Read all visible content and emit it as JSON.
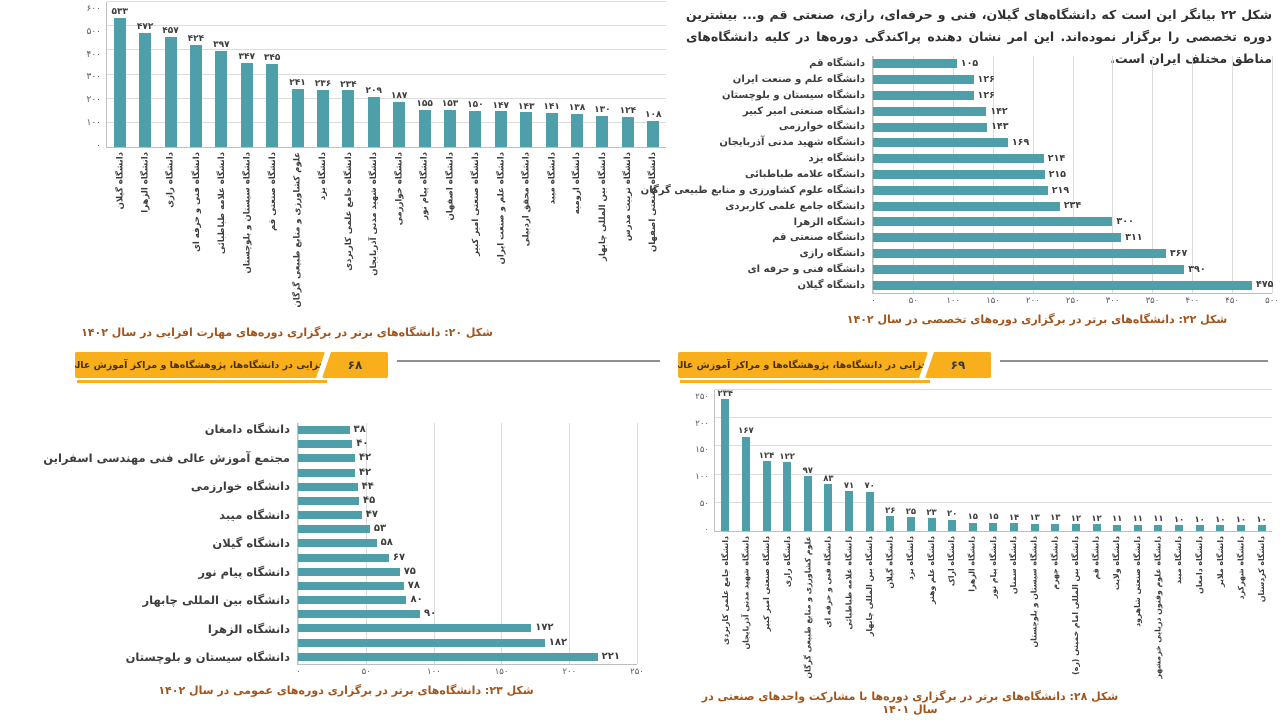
{
  "numeral_system": "persian-digits",
  "colors": {
    "bar": "#4F9FAB",
    "caption_text": "#A3541A",
    "banner_orange": "#F9AE1B",
    "grid_line": "#DCDCDC",
    "axis_line": "#BFBFBF",
    "axis_tick_text": "#595959",
    "value_label_text": "#3D3D3D",
    "body_text": "#303030"
  },
  "intro_paragraph": {
    "text": "شکل ۲۲ بیانگر این است که دانشگاه‌های گیلان، فنی و حرفه‌ای، رازی، صنعتی قم و... بیشترین دوره تخصصی را برگزار نموده‌اند. این امر نشان دهنده پراکندگی دوره‌ها در کلیه دانشگاه‌های مناطق مختلف ایران است."
  },
  "banner_left": {
    "title": "مهارت‌افزایی در دانشگاه‌ها، پژوهشگاه‌ها و مراکز آموزش عالی کشور",
    "page_number": "۶۸"
  },
  "banner_right": {
    "title": "مهارت‌افزایی در دانشگاه‌ها، پژوهشگاه‌ها و مراکز آموزش عالی کشور",
    "page_number": "۶۹"
  },
  "chart_data": [
    {
      "id": "chart20",
      "type": "bar",
      "orientation": "vertical",
      "caption": "شکل ۲۰: دانشگاه‌های برتر در برگزاری دوره‌های مهارت افزایی در سال ۱۴۰۲",
      "ylim": [
        0,
        600
      ],
      "tick_step": 100,
      "grid": true,
      "categories": [
        "دانشگاه گیلان",
        "دانشگاه الزهرا",
        "دانشگاه رازی",
        "دانشگاه فنی و حرفه ای",
        "دانشگاه علامه طباطبائی",
        "دانشگاه سیستان و بلوچستان",
        "دانشگاه صنعتی قم",
        "علوم کشاورزی و منابع طبیعی گرگان",
        "دانشگاه یزد",
        "دانشگاه جامع علمی کاربردی",
        "دانشگاه شهید مدنی آذربایجان",
        "دانشگاه خوارزمی",
        "دانشگاه پیام نور",
        "دانشگاه اصفهان",
        "دانشگاه صنعتی امیر کبیر",
        "دانشگاه علم و صنعت ایران",
        "دانشگاه محقق اردبیلی",
        "دانشگاه میبد",
        "دانشگاه ارومیه",
        "دانشگاه بین المللی چابهار",
        "دانشگاه تربیت مدرس",
        "دانشگاه صنعتی اصفهان"
      ],
      "values": [
        533,
        472,
        457,
        424,
        397,
        347,
        345,
        241,
        236,
        234,
        209,
        187,
        155,
        153,
        150,
        147,
        143,
        141,
        138,
        130,
        124,
        108
      ]
    },
    {
      "id": "chart22",
      "type": "bar",
      "orientation": "horizontal",
      "caption": "شکل ۲۲: دانشگاه‌های برتر در برگزاری دوره‌های تخصصی در سال ۱۴۰۲",
      "xlim": [
        0,
        500
      ],
      "tick_step": 50,
      "grid": true,
      "categories": [
        "دانشگاه قم",
        "دانشگاه علم و صنعت ایران",
        "دانشگاه سیستان و بلوچستان",
        "دانشگاه صنعتی امیر کبیر",
        "دانشگاه خوارزمی",
        "دانشگاه شهید مدنی آذربایجان",
        "دانشگاه یزد",
        "دانشگاه علامه طباطبائی",
        "دانشگاه علوم کشاورزی و منابع طبیعی گرگان",
        "دانشگاه جامع علمی کاربردی",
        "دانشگاه الزهرا",
        "دانشگاه صنعتی قم",
        "دانشگاه رازی",
        "دانشگاه فنی و حرفه ای",
        "دانشگاه گیلان"
      ],
      "values": [
        105,
        126,
        126,
        142,
        143,
        169,
        214,
        215,
        219,
        234,
        300,
        311,
        367,
        390,
        475
      ]
    },
    {
      "id": "chart23",
      "type": "bar",
      "orientation": "horizontal",
      "caption": "شکل ۲۳: دانشگاه‌های برتر در برگزاری دوره‌های عمومی در سال ۱۴۰۲",
      "xlim": [
        0,
        250
      ],
      "tick_step": 50,
      "grid": true,
      "categories": [
        "دانشگاه دامغان",
        "",
        "مجتمع آموزش عالی فنی مهندسی اسفراین",
        "",
        "دانشگاه خوارزمی",
        "",
        "دانشگاه میبد",
        "",
        "دانشگاه گیلان",
        "",
        "دانشگاه پیام نور",
        "",
        "دانشگاه بین المللی چابهار",
        "",
        "دانشگاه الزهرا",
        "",
        "دانشگاه سیستان و بلوچستان"
      ],
      "values": [
        38,
        40,
        42,
        42,
        44,
        45,
        47,
        53,
        58,
        67,
        75,
        78,
        80,
        90,
        172,
        182,
        221
      ]
    },
    {
      "id": "chart28",
      "type": "bar",
      "orientation": "vertical",
      "caption": "شکل ۲۸: دانشگاه‌های برتر در برگزاری دوره‌ها با مشارکت واحدهای صنعتی در سال ۱۴۰۱",
      "ylim": [
        0,
        250
      ],
      "tick_step": 50,
      "grid": true,
      "categories": [
        "دانشگاه جامع علمی کاربردی",
        "دانشگاه شهید مدنی آذربایجان",
        "دانشگاه صنعتی امیر کبیر",
        "دانشگاه رازی",
        "علوم کشاورزی و منابع طبیعی گرگان",
        "دانشگاه فنی و حرفه ای",
        "دانشگاه علامه طباطبائی",
        "دانشگاه بین المللی چابهار",
        "دانشگاه گیلان",
        "دانشگاه یزد",
        "دانشگاه علم وهنر",
        "دانشگاه اراک",
        "دانشگاه الزهرا",
        "دانشگاه پیام نور",
        "دانشگاه سمنان",
        "دانشگاه سیستان و بلوچستان",
        "دانشگاه جهرم",
        "دانشگاه بین المللی امام خمینی (ره)",
        "دانشگاه قم",
        "دانشگاه ولایت",
        "دانشگاه صنعتی شاهرود",
        "دانشگاه علوم وفنون دریایی خرمشهر",
        "دانشگاه میبد",
        "دانشگاه دامغان",
        "دانشگاه ملایر",
        "دانشگاه شهرکرد",
        "دانشگاه کردستان"
      ],
      "values": [
        234,
        167,
        124,
        122,
        97,
        83,
        71,
        70,
        26,
        25,
        23,
        20,
        15,
        15,
        14,
        13,
        13,
        12,
        12,
        11,
        11,
        11,
        10,
        10,
        10,
        10,
        10
      ]
    }
  ]
}
